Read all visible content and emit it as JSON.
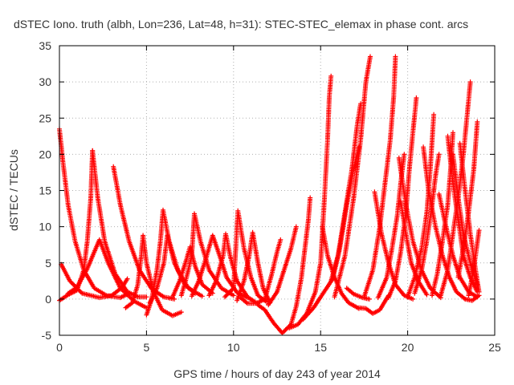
{
  "chart_data": {
    "type": "scatter",
    "title": "dSTEC Iono. truth (albh, Lon=236, Lat=48, h=31): STEC-STEC_elemax in phase cont. arcs",
    "xlabel": "GPS time / hours of day 243 of year 2014",
    "ylabel": "dSTEC  / TECUs",
    "xlim": [
      0,
      25
    ],
    "ylim": [
      -5,
      35
    ],
    "xticks": [
      0,
      5,
      10,
      15,
      20,
      25
    ],
    "yticks": [
      -5,
      0,
      5,
      10,
      15,
      20,
      25,
      30,
      35
    ],
    "grid": true,
    "marker": "plus",
    "color": "#ff0000",
    "series": [
      {
        "points": [
          [
            0.0,
            23.5
          ],
          [
            0.2,
            19
          ],
          [
            0.5,
            13
          ],
          [
            0.9,
            8
          ],
          [
            1.4,
            4
          ],
          [
            2.0,
            1.5
          ],
          [
            2.7,
            0.5
          ],
          [
            3.5,
            0.2
          ],
          [
            4.0,
            0.8
          ]
        ]
      },
      {
        "points": [
          [
            0.0,
            -0.2
          ],
          [
            0.5,
            0.6
          ],
          [
            1.0,
            1.2
          ],
          [
            1.4,
            4
          ],
          [
            1.6,
            8
          ],
          [
            1.8,
            14
          ],
          [
            1.9,
            20.5
          ]
        ]
      },
      {
        "points": [
          [
            1.9,
            20.5
          ],
          [
            2.2,
            14
          ],
          [
            2.6,
            8
          ],
          [
            3.2,
            3.5
          ],
          [
            3.9,
            1
          ],
          [
            4.5,
            0.3
          ],
          [
            5.0,
            0.3
          ]
        ]
      },
      {
        "points": [
          [
            0.1,
            4.8
          ],
          [
            0.6,
            2.5
          ],
          [
            1.3,
            0.8
          ],
          [
            2.3,
            0.2
          ],
          [
            3.0,
            0.5
          ],
          [
            3.6,
            1.6
          ],
          [
            3.9,
            2.8
          ]
        ]
      },
      {
        "points": [
          [
            0.5,
            0.8
          ],
          [
            1.0,
            1.6
          ],
          [
            1.6,
            4.2
          ],
          [
            2.0,
            6.5
          ],
          [
            2.3,
            8.2
          ],
          [
            2.8,
            5
          ],
          [
            3.5,
            1.5
          ],
          [
            4.3,
            -0.3
          ],
          [
            5.0,
            -1.2
          ]
        ]
      },
      {
        "points": [
          [
            3.1,
            18.3
          ],
          [
            3.5,
            13
          ],
          [
            4.0,
            8
          ],
          [
            4.6,
            4
          ],
          [
            5.3,
            1.4
          ],
          [
            6.0,
            0.3
          ],
          [
            6.6,
            0
          ]
        ]
      },
      {
        "points": [
          [
            3.8,
            -1.2
          ],
          [
            4.2,
            -0.5
          ],
          [
            4.5,
            2
          ],
          [
            4.7,
            6
          ],
          [
            4.8,
            8.8
          ],
          [
            5.0,
            5
          ],
          [
            5.4,
            1
          ],
          [
            5.9,
            -1.5
          ],
          [
            6.5,
            -2.3
          ],
          [
            7.0,
            -1.8
          ]
        ]
      },
      {
        "points": [
          [
            5.0,
            -2.2
          ],
          [
            5.3,
            0
          ],
          [
            5.6,
            4
          ],
          [
            5.8,
            8
          ],
          [
            5.95,
            12.3
          ],
          [
            6.3,
            8
          ],
          [
            6.8,
            4
          ],
          [
            7.4,
            1.5
          ],
          [
            8.2,
            0.4
          ]
        ]
      },
      {
        "points": [
          [
            5.2,
            -0.5
          ],
          [
            5.6,
            1.5
          ],
          [
            6.0,
            5
          ],
          [
            6.2,
            8.8
          ],
          [
            6.6,
            5
          ],
          [
            7.2,
            2
          ],
          [
            7.8,
            0.8
          ]
        ]
      },
      {
        "points": [
          [
            6.5,
            0.3
          ],
          [
            6.9,
            2.5
          ],
          [
            7.3,
            5.5
          ],
          [
            7.5,
            7.2
          ],
          [
            7.8,
            4.5
          ],
          [
            8.2,
            2
          ],
          [
            8.8,
            0.8
          ]
        ]
      },
      {
        "points": [
          [
            7.0,
            0.5
          ],
          [
            7.3,
            3
          ],
          [
            7.6,
            6
          ],
          [
            7.75,
            11.8
          ],
          [
            8.1,
            8
          ],
          [
            8.6,
            4
          ],
          [
            9.3,
            1.5
          ],
          [
            10.0,
            0.5
          ]
        ]
      },
      {
        "points": [
          [
            7.6,
            0.4
          ],
          [
            8.0,
            2.5
          ],
          [
            8.4,
            5.5
          ],
          [
            8.8,
            8.8
          ],
          [
            9.2,
            6
          ],
          [
            9.6,
            3
          ],
          [
            10.2,
            0.9
          ],
          [
            10.8,
            0.2
          ]
        ]
      },
      {
        "points": [
          [
            8.6,
            0.5
          ],
          [
            9.0,
            2.5
          ],
          [
            9.4,
            6
          ],
          [
            9.55,
            9
          ],
          [
            9.8,
            6
          ],
          [
            10.2,
            2.5
          ],
          [
            10.8,
            0.3
          ],
          [
            11.3,
            -0.5
          ]
        ]
      },
      {
        "points": [
          [
            9.5,
            0.3
          ],
          [
            10.0,
            1.5
          ],
          [
            10.25,
            12.2
          ],
          [
            10.6,
            7
          ],
          [
            11.0,
            3
          ],
          [
            11.4,
            0.5
          ],
          [
            11.9,
            -0.4
          ]
        ]
      },
      {
        "points": [
          [
            10.2,
            -0.2
          ],
          [
            10.6,
            2.5
          ],
          [
            10.9,
            6
          ],
          [
            11.1,
            9.2
          ],
          [
            11.4,
            5
          ],
          [
            11.7,
            1.5
          ],
          [
            12.1,
            -0.5
          ]
        ]
      },
      {
        "points": [
          [
            10.4,
            0.2
          ],
          [
            10.8,
            -0.6
          ],
          [
            11.3,
            -0.6
          ],
          [
            11.8,
            0
          ],
          [
            12.2,
            3.5
          ],
          [
            12.5,
            6.5
          ],
          [
            12.7,
            8.2
          ]
        ]
      },
      {
        "points": [
          [
            11.4,
            -0.8
          ],
          [
            11.8,
            -1.5
          ],
          [
            12.3,
            -3.3
          ],
          [
            12.8,
            -4.7
          ],
          [
            13.3,
            -3.5
          ],
          [
            13.6,
            -1
          ],
          [
            13.9,
            3
          ],
          [
            14.1,
            7
          ],
          [
            14.3,
            11
          ],
          [
            14.4,
            14
          ]
        ]
      },
      {
        "points": [
          [
            12.0,
            -0.8
          ],
          [
            12.5,
            1
          ],
          [
            12.9,
            4
          ],
          [
            13.3,
            7
          ],
          [
            13.6,
            10
          ]
        ]
      },
      {
        "points": [
          [
            13.2,
            -4
          ],
          [
            13.7,
            -3.5
          ],
          [
            14.2,
            -2
          ],
          [
            14.7,
            1
          ],
          [
            15.0,
            5
          ],
          [
            15.2,
            13
          ],
          [
            15.4,
            22
          ],
          [
            15.5,
            28
          ],
          [
            15.6,
            30.8
          ]
        ]
      },
      {
        "points": [
          [
            14.0,
            -2.8
          ],
          [
            14.6,
            -1.2
          ],
          [
            15.2,
            1
          ],
          [
            15.7,
            2.8
          ],
          [
            16.1,
            7
          ],
          [
            16.5,
            13
          ],
          [
            16.9,
            18
          ],
          [
            17.2,
            21
          ]
        ]
      },
      {
        "points": [
          [
            15.1,
            10
          ],
          [
            15.4,
            6
          ],
          [
            15.8,
            3
          ],
          [
            16.2,
            0.8
          ],
          [
            16.6,
            -0.5
          ],
          [
            17.2,
            -1.3
          ]
        ]
      },
      {
        "points": [
          [
            15.6,
            2.5
          ],
          [
            16.0,
            6
          ],
          [
            16.4,
            12
          ],
          [
            16.8,
            18
          ],
          [
            17.1,
            24
          ],
          [
            17.3,
            27
          ]
        ]
      },
      {
        "points": [
          [
            15.8,
            0.3
          ],
          [
            16.4,
            6
          ],
          [
            16.9,
            14
          ],
          [
            17.3,
            22
          ],
          [
            17.6,
            30
          ],
          [
            17.85,
            33.5
          ]
        ]
      },
      {
        "points": [
          [
            16.5,
            1.5
          ],
          [
            16.9,
            0.7
          ],
          [
            17.4,
            0.2
          ],
          [
            17.8,
            0
          ]
        ]
      },
      {
        "points": [
          [
            17.2,
            -1.2
          ],
          [
            17.6,
            -1.3
          ],
          [
            18.0,
            -2
          ],
          [
            18.4,
            -1.5
          ],
          [
            18.9,
            0.5
          ]
        ]
      },
      {
        "points": [
          [
            17.5,
            0.3
          ],
          [
            18.0,
            4
          ],
          [
            18.4,
            10
          ],
          [
            18.7,
            16
          ],
          [
            19.0,
            22
          ],
          [
            19.2,
            28
          ],
          [
            19.3,
            33.5
          ]
        ]
      },
      {
        "points": [
          [
            18.1,
            14.8
          ],
          [
            18.5,
            9
          ],
          [
            18.9,
            5
          ],
          [
            19.3,
            2
          ],
          [
            19.8,
            0.5
          ],
          [
            20.3,
            0
          ]
        ]
      },
      {
        "points": [
          [
            18.3,
            0.2
          ],
          [
            18.8,
            3
          ],
          [
            19.1,
            7
          ],
          [
            19.4,
            11.5
          ],
          [
            19.6,
            16
          ],
          [
            19.8,
            20
          ]
        ]
      },
      {
        "points": [
          [
            18.9,
            0.2
          ],
          [
            19.3,
            2.5
          ],
          [
            19.6,
            6.5
          ],
          [
            19.9,
            12
          ],
          [
            20.1,
            18
          ],
          [
            20.3,
            23
          ],
          [
            20.5,
            27.8
          ]
        ]
      },
      {
        "points": [
          [
            19.5,
            19.5
          ],
          [
            19.9,
            13
          ],
          [
            20.3,
            8
          ],
          [
            20.8,
            4
          ],
          [
            21.3,
            1.5
          ],
          [
            21.9,
            0.2
          ]
        ]
      },
      {
        "points": [
          [
            19.6,
            13.5
          ],
          [
            19.9,
            9
          ],
          [
            20.2,
            5
          ],
          [
            20.6,
            2.5
          ],
          [
            21.1,
            0.6
          ]
        ]
      },
      {
        "points": [
          [
            20.0,
            0.3
          ],
          [
            20.4,
            3
          ],
          [
            20.8,
            7
          ],
          [
            21.1,
            12
          ],
          [
            21.3,
            18
          ],
          [
            21.5,
            25.5
          ]
        ]
      },
      {
        "points": [
          [
            20.4,
            0.8
          ],
          [
            20.8,
            4
          ],
          [
            21.1,
            8
          ],
          [
            21.4,
            13
          ],
          [
            21.6,
            17
          ],
          [
            21.8,
            20
          ]
        ]
      },
      {
        "points": [
          [
            20.9,
            21
          ],
          [
            21.2,
            15
          ],
          [
            21.6,
            10
          ],
          [
            22.0,
            6
          ],
          [
            22.4,
            3
          ],
          [
            22.8,
            1
          ],
          [
            23.3,
            0
          ]
        ]
      },
      {
        "points": [
          [
            21.4,
            0.5
          ],
          [
            21.7,
            3.5
          ],
          [
            22.0,
            8
          ],
          [
            22.3,
            13
          ],
          [
            22.5,
            19
          ],
          [
            22.6,
            23
          ]
        ]
      },
      {
        "points": [
          [
            21.8,
            14.5
          ],
          [
            22.2,
            10
          ],
          [
            22.6,
            6
          ],
          [
            23.0,
            3
          ],
          [
            23.5,
            1
          ],
          [
            24.0,
            0.3
          ]
        ]
      },
      {
        "points": [
          [
            21.9,
            0.5
          ],
          [
            22.3,
            4
          ],
          [
            22.6,
            9
          ],
          [
            22.9,
            14
          ],
          [
            23.2,
            20
          ],
          [
            23.4,
            25
          ],
          [
            23.6,
            30
          ]
        ]
      },
      {
        "points": [
          [
            22.3,
            22.5
          ],
          [
            22.6,
            16
          ],
          [
            22.9,
            11
          ],
          [
            23.2,
            6
          ],
          [
            23.6,
            3
          ],
          [
            24.0,
            1
          ]
        ]
      },
      {
        "points": [
          [
            22.6,
            20
          ],
          [
            22.9,
            14
          ],
          [
            23.2,
            9
          ],
          [
            23.6,
            5
          ],
          [
            24.0,
            2
          ]
        ]
      },
      {
        "points": [
          [
            22.9,
            3
          ],
          [
            23.2,
            7
          ],
          [
            23.5,
            12
          ],
          [
            23.8,
            18
          ],
          [
            24.0,
            24.5
          ]
        ]
      },
      {
        "points": [
          [
            23.0,
            21.5
          ],
          [
            23.3,
            15
          ],
          [
            23.6,
            9
          ],
          [
            23.9,
            4
          ],
          [
            24.1,
            1
          ]
        ]
      },
      {
        "points": [
          [
            23.5,
            0.5
          ],
          [
            23.7,
            3
          ],
          [
            23.9,
            6
          ],
          [
            24.1,
            9.5
          ]
        ]
      },
      {
        "points": [
          [
            23.3,
            0
          ],
          [
            23.7,
            -0.2
          ],
          [
            24.1,
            0.5
          ]
        ]
      }
    ]
  },
  "colors": {
    "marker": "#ff0000",
    "grid": "#b0b0b0",
    "frame": "#000000",
    "text": "#333333"
  }
}
